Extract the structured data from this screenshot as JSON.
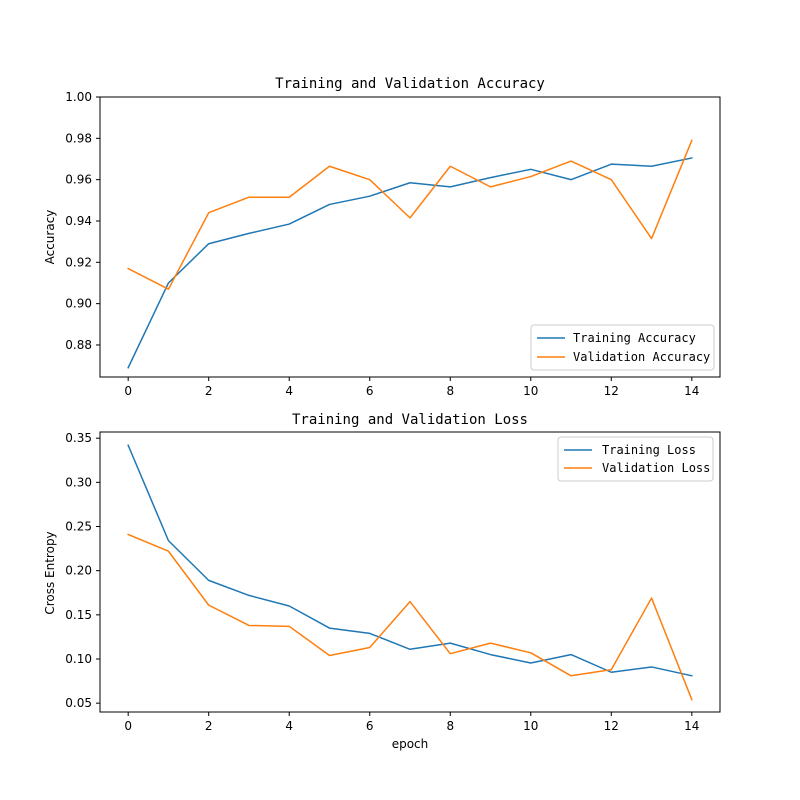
{
  "chart_data": [
    {
      "type": "line",
      "title": "Training and Validation Accuracy",
      "xlabel": "",
      "ylabel": "Accuracy",
      "x": [
        0,
        1,
        2,
        3,
        4,
        5,
        6,
        7,
        8,
        9,
        10,
        11,
        12,
        13,
        14
      ],
      "xlim": [
        -0.7,
        14.7
      ],
      "ylim": [
        0.8645,
        1.0
      ],
      "xticks": [
        0,
        2,
        4,
        6,
        8,
        10,
        12,
        14
      ],
      "yticks": [
        0.88,
        0.9,
        0.92,
        0.94,
        0.96,
        0.98,
        1.0
      ],
      "ytick_labels": [
        "0.88",
        "0.90",
        "0.92",
        "0.94",
        "0.96",
        "0.98",
        "1.00"
      ],
      "legend": "lower-right",
      "grid": false,
      "series": [
        {
          "name": "Training Accuracy",
          "color": "#1f77b4",
          "values": [
            0.869,
            0.91,
            0.929,
            0.934,
            0.9385,
            0.948,
            0.952,
            0.9585,
            0.9565,
            0.961,
            0.965,
            0.96,
            0.9675,
            0.9665,
            0.9705
          ]
        },
        {
          "name": "Validation Accuracy",
          "color": "#ff7f0e",
          "values": [
            0.917,
            0.907,
            0.944,
            0.9515,
            0.9515,
            0.9665,
            0.96,
            0.9415,
            0.9665,
            0.9565,
            0.9615,
            0.969,
            0.96,
            0.9315,
            0.979
          ]
        }
      ]
    },
    {
      "type": "line",
      "title": "Training and Validation Loss",
      "xlabel": "epoch",
      "ylabel": "Cross Entropy",
      "x": [
        0,
        1,
        2,
        3,
        4,
        5,
        6,
        7,
        8,
        9,
        10,
        11,
        12,
        13,
        14
      ],
      "xlim": [
        -0.7,
        14.7
      ],
      "ylim": [
        0.04,
        0.357
      ],
      "xticks": [
        0,
        2,
        4,
        6,
        8,
        10,
        12,
        14
      ],
      "yticks": [
        0.05,
        0.1,
        0.15,
        0.2,
        0.25,
        0.3,
        0.35
      ],
      "ytick_labels": [
        "0.05",
        "0.10",
        "0.15",
        "0.20",
        "0.25",
        "0.30",
        "0.35"
      ],
      "legend": "top-right",
      "grid": false,
      "series": [
        {
          "name": "Training Loss",
          "color": "#1f77b4",
          "values": [
            0.342,
            0.234,
            0.189,
            0.172,
            0.16,
            0.135,
            0.129,
            0.111,
            0.118,
            0.105,
            0.0955,
            0.105,
            0.085,
            0.091,
            0.081
          ]
        },
        {
          "name": "Validation Loss",
          "color": "#ff7f0e",
          "values": [
            0.241,
            0.222,
            0.161,
            0.138,
            0.137,
            0.104,
            0.113,
            0.165,
            0.106,
            0.118,
            0.107,
            0.081,
            0.088,
            0.169,
            0.054
          ]
        }
      ]
    }
  ]
}
